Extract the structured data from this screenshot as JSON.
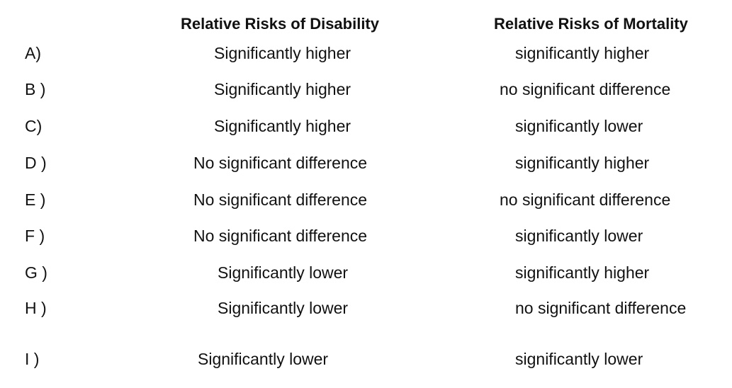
{
  "headers": {
    "disability": "Relative Risks of Disability",
    "mortality": "Relative Risks of Mortality"
  },
  "rows": [
    {
      "letter": "A)",
      "disability": "Significantly higher",
      "mortality": "significantly higher"
    },
    {
      "letter": "B )",
      "disability": "Significantly higher",
      "mortality": "no significant difference"
    },
    {
      "letter": "C)",
      "disability": "Significantly higher",
      "mortality": "significantly lower"
    },
    {
      "letter": "D )",
      "disability": "No significant difference",
      "mortality": "significantly higher"
    },
    {
      "letter": "E )",
      "disability": "No significant difference",
      "mortality": "no significant difference"
    },
    {
      "letter": "F )",
      "disability": "No significant difference",
      "mortality": "significantly lower"
    },
    {
      "letter": "G )",
      "disability": "Significantly lower",
      "mortality": "significantly higher"
    },
    {
      "letter": "H )",
      "disability": "Significantly lower",
      "mortality": "no significant difference"
    },
    {
      "letter": "I )",
      "disability": "Significantly lower",
      "mortality": "significantly lower"
    }
  ]
}
